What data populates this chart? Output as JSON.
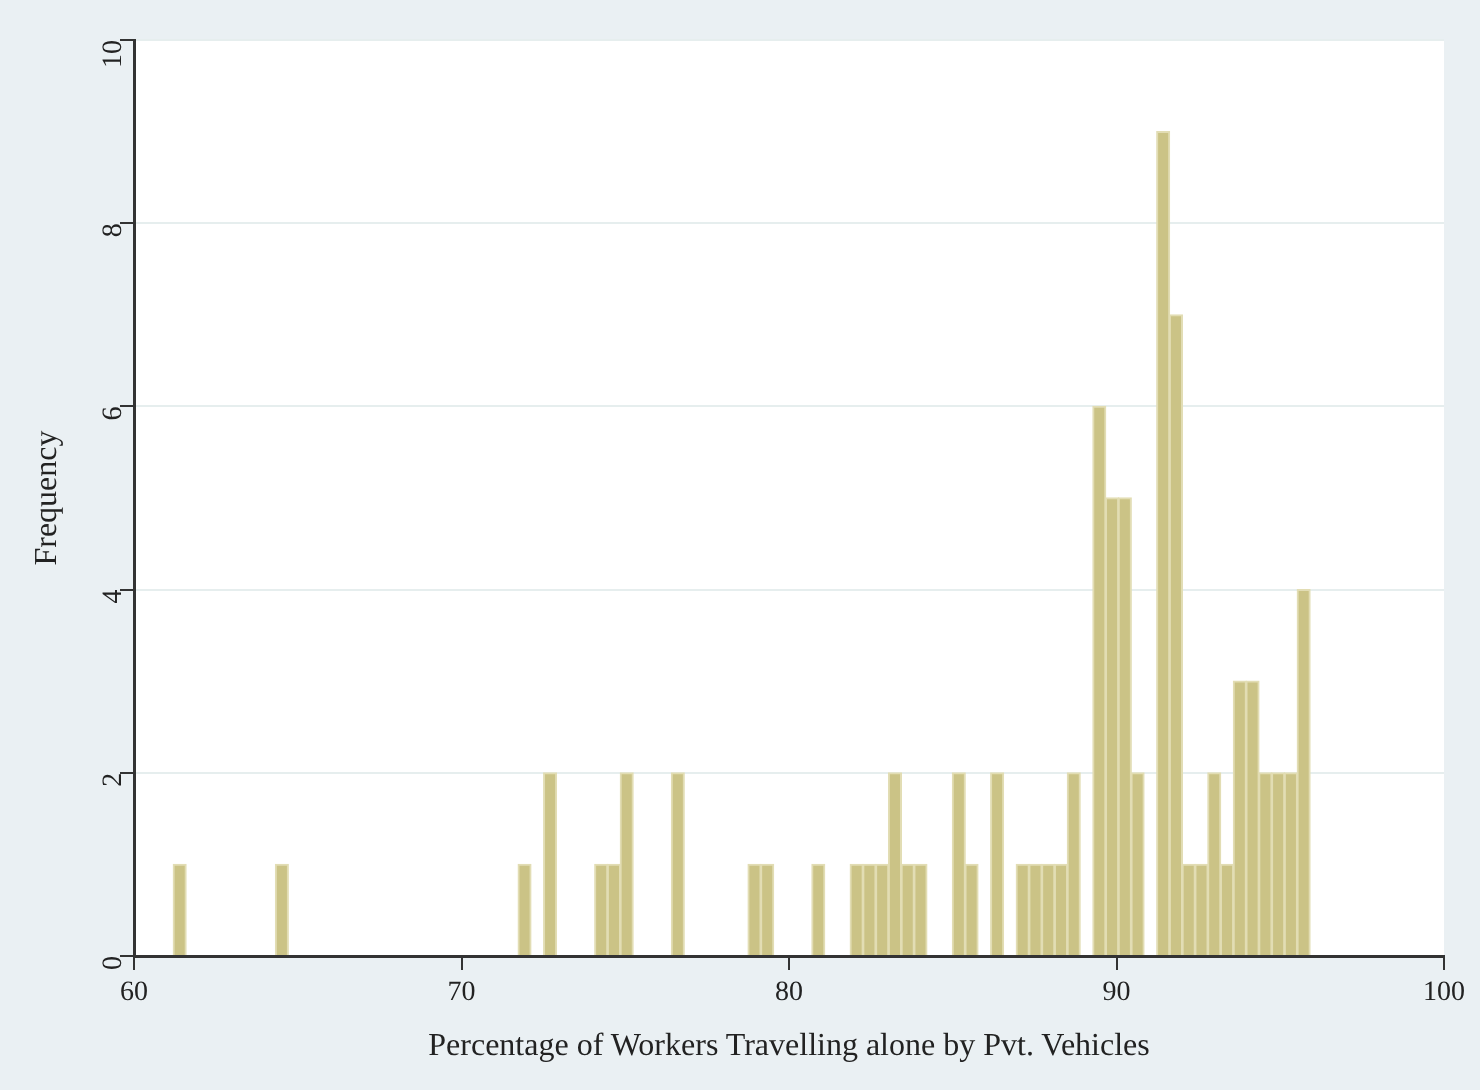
{
  "chart_data": {
    "type": "histogram",
    "xlabel": "Percentage of Workers Travelling alone by Pvt. Vehicles",
    "ylabel": "Frequency",
    "bins": [
      61.2,
      61.59,
      61.98,
      62.37,
      62.76,
      63.15,
      63.54,
      63.93,
      64.32,
      64.71,
      65.1,
      65.49,
      65.88,
      66.27,
      66.66,
      67.05,
      67.44,
      67.83,
      68.22,
      68.61,
      69,
      69.39,
      69.78,
      70.17,
      70.56,
      70.95,
      71.34,
      71.73,
      72.12,
      72.51,
      72.9,
      73.29,
      73.68,
      74.07,
      74.46,
      74.85,
      75.24,
      75.63,
      76.02,
      76.41,
      76.8,
      77.19,
      77.58,
      77.97,
      78.36,
      78.75,
      79.14,
      79.53,
      79.92,
      80.31,
      80.7,
      81.09,
      81.48,
      81.87,
      82.26,
      82.65,
      83.04,
      83.43,
      83.82,
      84.21,
      84.6,
      84.99,
      85.38,
      85.77,
      86.16,
      86.55,
      86.94,
      87.33,
      87.72,
      88.11,
      88.5,
      88.89,
      89.28,
      89.67,
      90.06,
      90.45,
      90.84,
      91.23,
      91.62,
      92.01,
      92.4,
      92.79,
      93.18,
      93.57,
      93.96,
      94.35,
      94.74,
      95.13,
      95.52,
      95.91
    ],
    "values": [
      1,
      0,
      0,
      0,
      0,
      0,
      0,
      0,
      1,
      0,
      0,
      0,
      0,
      0,
      0,
      0,
      0,
      0,
      0,
      0,
      0,
      0,
      0,
      0,
      0,
      0,
      0,
      1,
      0,
      2,
      0,
      0,
      0,
      1,
      1,
      2,
      0,
      0,
      0,
      2,
      0,
      0,
      0,
      0,
      0,
      1,
      1,
      0,
      0,
      0,
      1,
      0,
      0,
      1,
      1,
      1,
      2,
      1,
      1,
      0,
      0,
      2,
      1,
      0,
      2,
      0,
      1,
      1,
      1,
      1,
      2,
      0,
      6,
      5,
      5,
      2,
      0,
      9,
      7,
      1,
      1,
      2,
      1,
      3,
      3,
      2,
      2,
      2,
      4
    ],
    "color": "#cbc386",
    "xlim": [
      60,
      100
    ],
    "xticks": [
      60,
      70,
      80,
      90,
      100
    ],
    "ylim": [
      0,
      10
    ],
    "yticks": [
      0,
      2,
      4,
      6,
      8,
      10
    ],
    "grid": "y"
  }
}
